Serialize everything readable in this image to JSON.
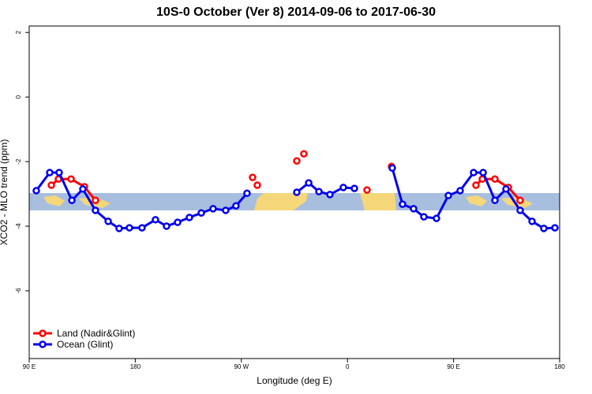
{
  "chart_data": {
    "type": "line",
    "title": "10S-0 October (Ver 8)   2014-09-06 to 2017-06-30",
    "x_label": "Longitude (deg E)",
    "y_label": "XCO2 - MLO trend (ppm)",
    "xlim": [
      90,
      540
    ],
    "xticks": [
      {
        "value": 90,
        "label": "90 E"
      },
      {
        "value": 180,
        "label": "180"
      },
      {
        "value": 270,
        "label": "90 W"
      },
      {
        "value": 360,
        "label": "0"
      },
      {
        "value": 450,
        "label": "90 E"
      },
      {
        "value": 540,
        "label": "180"
      }
    ],
    "ylim": [
      -8.1,
      2.2
    ],
    "yticks": [
      2,
      0,
      -2,
      -4,
      -6
    ],
    "legend": "bottom-left",
    "series": [
      {
        "name": "Land (Nadir&Glint)",
        "color": "#ff0000",
        "x": [
          108.8,
          114.8,
          125.5,
          136.9,
          146.2,
          null,
          279.5,
          null,
          283.5,
          null,
          317.0,
          null,
          323.0,
          null,
          376.6,
          null,
          397.4,
          null,
          469.0,
          474.4,
          485.1,
          496.5,
          506.5
        ],
        "values": [
          -2.73,
          -2.54,
          -2.54,
          -2.78,
          -3.2,
          null,
          -2.49,
          null,
          -2.73,
          null,
          -1.98,
          null,
          -1.76,
          null,
          -2.88,
          null,
          -2.15,
          null,
          -2.73,
          -2.54,
          -2.54,
          -2.8,
          -3.2
        ]
      },
      {
        "name": "Ocean (Glint)",
        "color": "#0000ee",
        "x": [
          96.0,
          107.4,
          115.4,
          126.2,
          135.5,
          146.2,
          157.0,
          166.3,
          175.0,
          185.7,
          197.1,
          206.5,
          215.9,
          225.9,
          236.0,
          246.0,
          256.7,
          265.4,
          274.8,
          null,
          317.0,
          327.1,
          335.8,
          345.1,
          356.5,
          365.9,
          null,
          398.0,
          406.7,
          416.1,
          424.8,
          435.5,
          445.6,
          455.6,
          467.0,
          475.1,
          485.1,
          494.5,
          506.5,
          516.6,
          526.6,
          536.0
        ],
        "values": [
          -2.9,
          -2.34,
          -2.34,
          -3.2,
          -2.85,
          -3.51,
          -3.85,
          -4.07,
          -4.05,
          -4.05,
          -3.8,
          -4.0,
          -3.88,
          -3.73,
          -3.59,
          -3.46,
          -3.51,
          -3.37,
          -2.98,
          null,
          -2.95,
          -2.66,
          -2.93,
          -3.02,
          -2.8,
          -2.83,
          null,
          -2.2,
          -3.32,
          -3.46,
          -3.71,
          -3.76,
          -3.05,
          -2.9,
          -2.34,
          -2.34,
          -3.2,
          -2.85,
          -3.51,
          -3.85,
          -4.07,
          -4.05
        ]
      }
    ]
  }
}
